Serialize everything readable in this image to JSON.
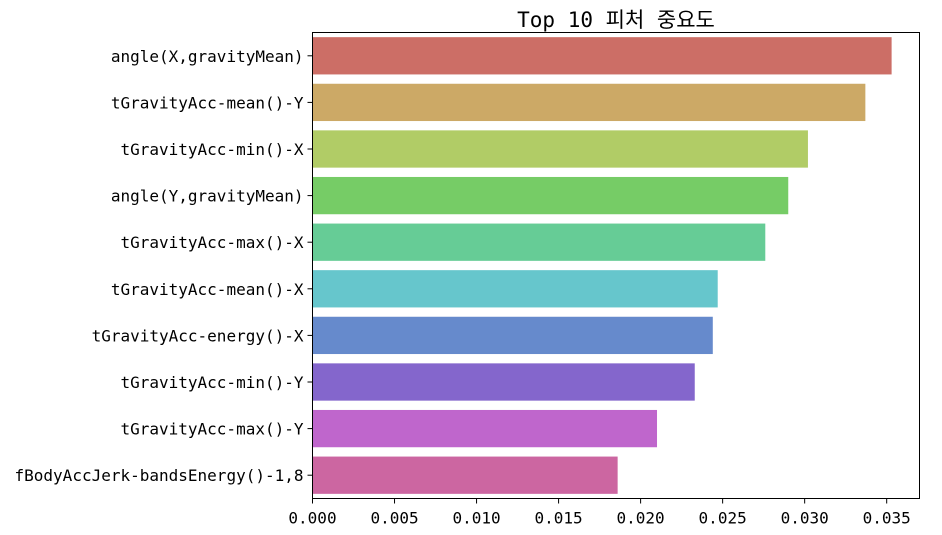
{
  "chart_data": {
    "type": "bar",
    "orientation": "horizontal",
    "title": "Top 10 피처 중요도",
    "xlabel": "",
    "ylabel": "",
    "xlim": [
      0.0,
      0.037
    ],
    "xticks": [
      "0.000",
      "0.005",
      "0.010",
      "0.015",
      "0.020",
      "0.025",
      "0.030",
      "0.035"
    ],
    "grid": false,
    "categories": [
      "angle(X,gravityMean)",
      "tGravityAcc-mean()-Y",
      "tGravityAcc-min()-X",
      "angle(Y,gravityMean)",
      "tGravityAcc-max()-X",
      "tGravityAcc-mean()-X",
      "tGravityAcc-energy()-X",
      "tGravityAcc-min()-Y",
      "tGravityAcc-max()-Y",
      "fBodyAccJerk-bandsEnergy()-1,8"
    ],
    "values": [
      0.0353,
      0.0337,
      0.0302,
      0.029,
      0.0276,
      0.0247,
      0.0244,
      0.0233,
      0.021,
      0.0186
    ],
    "colors": [
      "#cc6e66",
      "#cca966",
      "#b1cc66",
      "#76cc66",
      "#66cc96",
      "#66c6cc",
      "#668acc",
      "#8466cc",
      "#bf66cc",
      "#cc66a1"
    ]
  }
}
